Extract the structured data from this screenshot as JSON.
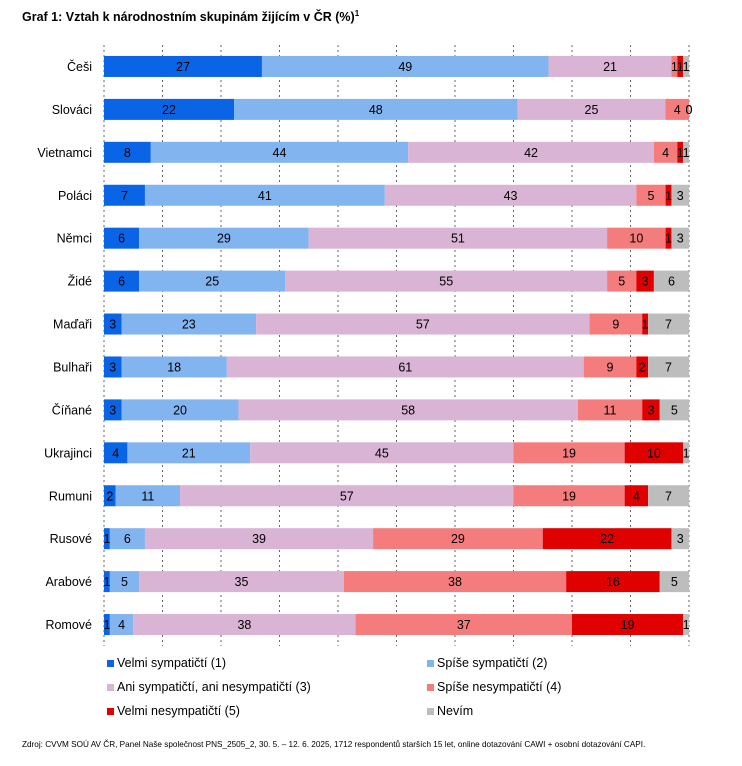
{
  "title": "Graf 1: Vztah k národnostním skupinám žijícím v ČR (%)",
  "title_sup": "1",
  "source": "Zdroj: CVVM SOÚ AV ČR, Panel Naše společnost PNS_2505_2, 30. 5. – 12. 6. 2025, 1712 respondentů starších 15 let, online dotazování CAWI + osobní dotazování CAPI.",
  "chart_data": {
    "type": "bar",
    "orientation": "horizontal",
    "stacked": true,
    "grid": true,
    "legend_placement": "bottom",
    "categories": [
      "Češi",
      "Slováci",
      "Vietnamci",
      "Poláci",
      "Němci",
      "Židé",
      "Maďaři",
      "Bulhaři",
      "Číňané",
      "Ukrajinci",
      "Rumuni",
      "Rusové",
      "Arabové",
      "Romové"
    ],
    "series": [
      {
        "name": "Velmi sympatičtí (1)",
        "color": "#0a64e6",
        "values": [
          27,
          22,
          8,
          7,
          6,
          6,
          3,
          3,
          3,
          4,
          2,
          1,
          1,
          1
        ]
      },
      {
        "name": "Spíše sympatičtí (2)",
        "color": "#82b4f0",
        "values": [
          49,
          48,
          44,
          41,
          29,
          25,
          23,
          18,
          20,
          21,
          11,
          6,
          5,
          4
        ]
      },
      {
        "name": "Ani sympatičtí, ani nesympatičtí (3)",
        "color": "#d9b4d4",
        "values": [
          21,
          25,
          42,
          43,
          51,
          55,
          57,
          61,
          58,
          45,
          57,
          39,
          35,
          38
        ]
      },
      {
        "name": "Spíše nesympatičtí (4)",
        "color": "#f47c7c",
        "values": [
          1,
          4,
          4,
          5,
          10,
          5,
          9,
          9,
          11,
          19,
          19,
          29,
          38,
          37
        ]
      },
      {
        "name": "Velmi nesympatičtí (5)",
        "color": "#e00000",
        "values": [
          1,
          0,
          1,
          1,
          1,
          3,
          1,
          2,
          3,
          10,
          4,
          22,
          16,
          19
        ]
      },
      {
        "name": "Nevím",
        "color": "#bdbdbd",
        "values": [
          1,
          0,
          1,
          3,
          3,
          6,
          7,
          7,
          5,
          1,
          7,
          3,
          5,
          1
        ]
      }
    ],
    "xlim": [
      0,
      100
    ]
  }
}
